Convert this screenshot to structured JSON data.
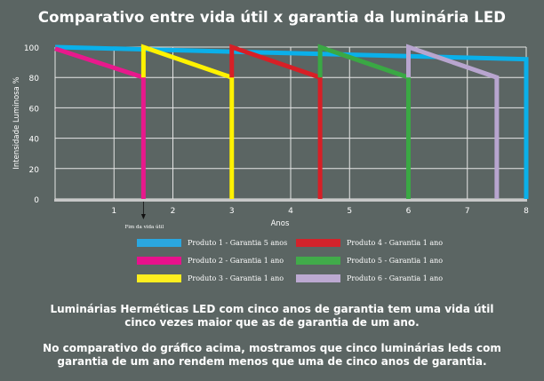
{
  "title": "Comparativo entre vida útil x garantia da luminária LED",
  "chart_data": {
    "type": "line",
    "title": "Comparativo entre vida útil x garantia da luminária LED",
    "xlabel": "Anos",
    "ylabel": "Intensidade Luminosa %",
    "xlim": [
      0,
      8
    ],
    "ylim": [
      0,
      100
    ],
    "x_ticks": [
      "1",
      "2",
      "3",
      "4",
      "5",
      "6",
      "7",
      "8"
    ],
    "y_ticks": [
      "0",
      "20",
      "40",
      "60",
      "80",
      "100"
    ],
    "grid": true,
    "legend_position": "bottom",
    "annotation": "Fim da vida útil",
    "series": [
      {
        "name": "Produto 1 - Garantia 5 anos",
        "color": "#0ab0ea",
        "points": [
          [
            0,
            100
          ],
          [
            8,
            92
          ],
          [
            8,
            0
          ]
        ]
      },
      {
        "name": "Produto 2 - Garantia 1 ano",
        "color": "#e8198c",
        "points": [
          [
            0,
            99
          ],
          [
            1.5,
            80
          ],
          [
            1.5,
            0
          ]
        ]
      },
      {
        "name": "Produto 3 - Garantia 1 ano",
        "color": "#fff200",
        "points": [
          [
            1.5,
            80
          ],
          [
            1.5,
            100
          ],
          [
            3,
            80
          ],
          [
            3,
            0
          ]
        ]
      },
      {
        "name": "Produto 4 - Garantia 1 ano",
        "color": "#d71f26",
        "points": [
          [
            3,
            80
          ],
          [
            3,
            100
          ],
          [
            4.5,
            80
          ],
          [
            4.5,
            0
          ]
        ]
      },
      {
        "name": "Produto 5 - Garantia 1 ano",
        "color": "#3aa844",
        "points": [
          [
            4.5,
            80
          ],
          [
            4.5,
            100
          ],
          [
            6,
            80
          ],
          [
            6,
            0
          ]
        ]
      },
      {
        "name": "Produto 6 - Garantia 1 ano",
        "color": "#b8a5cf",
        "points": [
          [
            6,
            80
          ],
          [
            6,
            100
          ],
          [
            7.5,
            80
          ],
          [
            7.5,
            0
          ]
        ]
      }
    ]
  },
  "legend": [
    {
      "label": "Produto 1 - Garantia 5 anos",
      "color": "#2aa7e0"
    },
    {
      "label": "Produto 2 - Garantia 1 ano",
      "color": "#e8118c"
    },
    {
      "label": "Produto 3 - Garantia 1 ano",
      "color": "#fdee1f"
    },
    {
      "label": "Produto 4 - Garantia 1 ano",
      "color": "#d2232b"
    },
    {
      "label": "Produto 5 - Garantia 1 ano",
      "color": "#41ab4a"
    },
    {
      "label": "Produto 6 - Garantia 1 ano",
      "color": "#bca9d1"
    }
  ],
  "footer": {
    "line1": "Luminárias Herméticas LED com cinco anos de garantia tem uma vida útil cinco vezes maior que as de garantia de um ano.",
    "line2": "No comparativo do gráfico acima, mostramos que cinco luminárias leds com garantia de um ano rendem menos que uma de cinco anos de garantia."
  }
}
